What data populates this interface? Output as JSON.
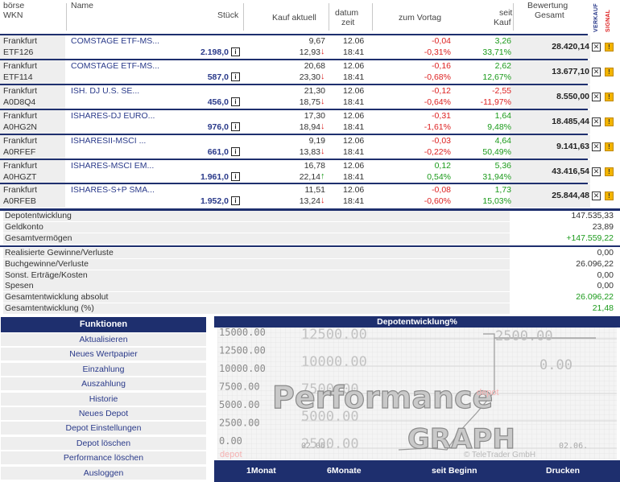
{
  "header": {
    "boerse": "börse",
    "wkn": "WKN",
    "name": "Name",
    "stueck": "Stück",
    "kauf_aktuell": "Kauf aktuell",
    "datum": "datum",
    "zeit": "zeit",
    "zum_vortag": "zum Vortag",
    "seit": "seit",
    "kauf": "Kauf",
    "bewertung": "Bewertung",
    "gesamt": "Gesamt",
    "verkauf": "VERKAUF",
    "signal": "SIGNAL"
  },
  "rows": [
    {
      "boerse": "Frankfurt",
      "wkn": "ETF126",
      "name": "COMSTAGE ETF-MS...",
      "stueck": "2.198,0",
      "kauf": "9,67",
      "kurs": "12,93",
      "trend": "down",
      "datum": "12.06",
      "zeit": "18:41",
      "vortag_abs": "-0,04",
      "vortag_pct": "-0,31%",
      "seit_abs": "3,26",
      "seit_pct": "33,71%",
      "bewertung": "28.420,14"
    },
    {
      "boerse": "Frankfurt",
      "wkn": "ETF114",
      "name": "COMSTAGE ETF-MS...",
      "stueck": "587,0",
      "kauf": "20,68",
      "kurs": "23,30",
      "trend": "down",
      "datum": "12.06",
      "zeit": "18:41",
      "vortag_abs": "-0,16",
      "vortag_pct": "-0,68%",
      "seit_abs": "2,62",
      "seit_pct": "12,67%",
      "bewertung": "13.677,10"
    },
    {
      "boerse": "Frankfurt",
      "wkn": "A0D8Q4",
      "name": "ISH. DJ U.S. SE...",
      "stueck": "456,0",
      "kauf": "21,30",
      "kurs": "18,75",
      "trend": "down",
      "datum": "12.06",
      "zeit": "18:41",
      "vortag_abs": "-0,12",
      "vortag_pct": "-0,64%",
      "seit_abs": "-2,55",
      "seit_pct": "-11,97%",
      "bewertung": "8.550,00"
    },
    {
      "boerse": "Frankfurt",
      "wkn": "A0HG2N",
      "name": "ISHARES-DJ EURO...",
      "stueck": "976,0",
      "kauf": "17,30",
      "kurs": "18,94",
      "trend": "down",
      "datum": "12.06",
      "zeit": "18:41",
      "vortag_abs": "-0,31",
      "vortag_pct": "-1,61%",
      "seit_abs": "1,64",
      "seit_pct": "9,48%",
      "bewertung": "18.485,44"
    },
    {
      "boerse": "Frankfurt",
      "wkn": "A0RFEF",
      "name": "ISHARESII-MSCI ...",
      "stueck": "661,0",
      "kauf": "9,19",
      "kurs": "13,83",
      "trend": "down",
      "datum": "12.06",
      "zeit": "18:41",
      "vortag_abs": "-0,03",
      "vortag_pct": "-0,22%",
      "seit_abs": "4,64",
      "seit_pct": "50,49%",
      "bewertung": "9.141,63"
    },
    {
      "boerse": "Frankfurt",
      "wkn": "A0HGZT",
      "name": "ISHARES-MSCI EM...",
      "stueck": "1.961,0",
      "kauf": "16,78",
      "kurs": "22,14",
      "trend": "up",
      "datum": "12.06",
      "zeit": "18:41",
      "vortag_abs": "0,12",
      "vortag_pct": "0,54%",
      "seit_abs": "5,36",
      "seit_pct": "31,94%",
      "bewertung": "43.416,54"
    },
    {
      "boerse": "Frankfurt",
      "wkn": "A0RFEB",
      "name": "ISHARES-S+P SMA...",
      "stueck": "1.952,0",
      "kauf": "11,51",
      "kurs": "13,24",
      "trend": "down",
      "datum": "12.06",
      "zeit": "18:41",
      "vortag_abs": "-0,08",
      "vortag_pct": "-0,60%",
      "seit_abs": "1,73",
      "seit_pct": "15,03%",
      "bewertung": "25.844,48"
    }
  ],
  "summary1": [
    {
      "label": "Depotentwicklung",
      "value": "147.535,33",
      "tone": "neutral"
    },
    {
      "label": "Geldkonto",
      "value": "23,89",
      "tone": "neutral"
    },
    {
      "label": "Gesamtvermögen",
      "value": "+147.559,22",
      "tone": "green"
    }
  ],
  "summary2": [
    {
      "label": "Realisierte Gewinne/Verluste",
      "value": "0,00",
      "tone": "neutral"
    },
    {
      "label": "Buchgewinne/Verluste",
      "value": "26.096,22",
      "tone": "neutral"
    },
    {
      "label": "Sonst. Erträge/Kosten",
      "value": "0,00",
      "tone": "neutral"
    },
    {
      "label": "Spesen",
      "value": "0,00",
      "tone": "neutral"
    },
    {
      "label": "Gesamtentwicklung absolut",
      "value": "26.096,22",
      "tone": "green"
    },
    {
      "label": "Gesamtentwicklung (%)",
      "value": "21,48",
      "tone": "green"
    }
  ],
  "funktionen": {
    "title": "Funktionen",
    "items": [
      "Aktualisieren",
      "Neues Wertpapier",
      "Einzahlung",
      "Auszahlung",
      "Historie",
      "Neues Depot",
      "Depot Einstellungen",
      "Depot löschen",
      "Performance löschen",
      "Ausloggen"
    ]
  },
  "graph": {
    "title": "Depotentwicklung%",
    "y_ticks_left": [
      "15000.00",
      "12500.00",
      "10000.00",
      "7500.00",
      "5000.00",
      "2500.00",
      "0.00"
    ],
    "overlay_ticks": [
      "12500.00",
      "10000.00",
      "7500.00",
      "5000.00",
      "2500.00"
    ],
    "right_labels": [
      "2500.00",
      "0.00"
    ],
    "watermark_top": "Performance",
    "watermark_bottom": "GRAPH",
    "label_depot": "depot",
    "x_labels": [
      "02.06.",
      "02.06."
    ],
    "copyright": "© TeleTrader GmbH",
    "buttons": [
      "1Monat",
      "6Monate",
      "seit Beginn",
      "Drucken"
    ]
  },
  "colors": {
    "navy": "#1e2f6e",
    "row_bg": "#eeeeee",
    "negative": "#dd2222",
    "positive": "#1a9a1a",
    "link": "#2a3a8a",
    "signal": "#f2b400"
  }
}
